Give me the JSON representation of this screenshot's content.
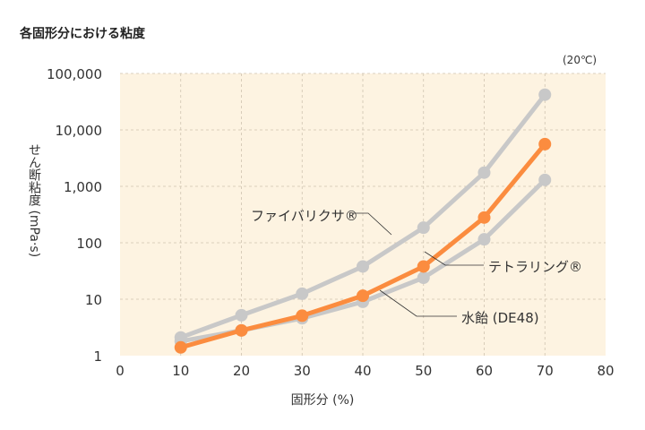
{
  "title": "各固形分における粘度",
  "note": "(20℃)",
  "chart_data": {
    "type": "line",
    "title": "各固形分における粘度",
    "xlabel": "固形分 (%)",
    "ylabel": "せん断粘度 (mPa·s)",
    "ylabel_main": "せん断粘度",
    "ylabel_unit": "(mPa·s)",
    "yscale": "log",
    "xlim": [
      0,
      80
    ],
    "ylim": [
      1,
      100000
    ],
    "xticks": [
      "0",
      "10",
      "20",
      "30",
      "40",
      "50",
      "60",
      "70",
      "80"
    ],
    "yticks": [
      "1",
      "10",
      "100",
      "1,000",
      "10,000",
      "100,000"
    ],
    "grid": true,
    "x": [
      10,
      20,
      30,
      40,
      50,
      60,
      70
    ],
    "series": [
      {
        "name": "ファイバリクサ®",
        "color": "#c8c8c8",
        "values": [
          2.1,
          5.2,
          12.5,
          38,
          185,
          1750,
          42000
        ]
      },
      {
        "name": "水飴 (DE48)",
        "color": "#c8c8c8",
        "values": [
          1.8,
          2.8,
          4.6,
          9,
          24,
          115,
          1300
        ]
      },
      {
        "name": "テトラリング®",
        "color": "#fb8c3f",
        "values": [
          1.4,
          2.8,
          5.1,
          11.5,
          38,
          280,
          5600
        ]
      }
    ]
  }
}
